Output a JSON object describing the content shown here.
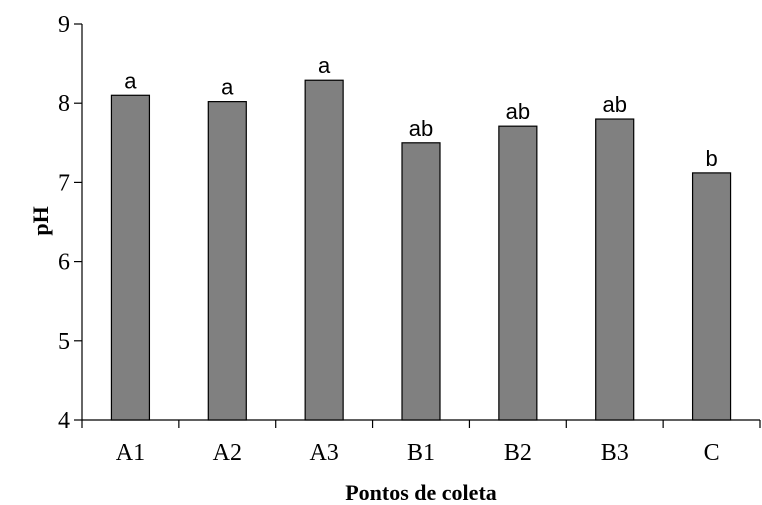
{
  "chart_data": {
    "type": "bar",
    "title": "",
    "xlabel": "Pontos de coleta",
    "ylabel": "pH",
    "categories": [
      "A1",
      "A2",
      "A3",
      "B1",
      "B2",
      "B3",
      "C"
    ],
    "values": [
      8.1,
      8.02,
      8.29,
      7.5,
      7.71,
      7.8,
      7.12
    ],
    "labels": [
      "a",
      "a",
      "a",
      "ab",
      "ab",
      "ab",
      "b"
    ],
    "ylim": [
      4,
      9
    ],
    "yticks": [
      4,
      5,
      6,
      7,
      8,
      9
    ],
    "grid": false,
    "colors": {
      "bar": "#808080",
      "edge": "#000000"
    }
  }
}
